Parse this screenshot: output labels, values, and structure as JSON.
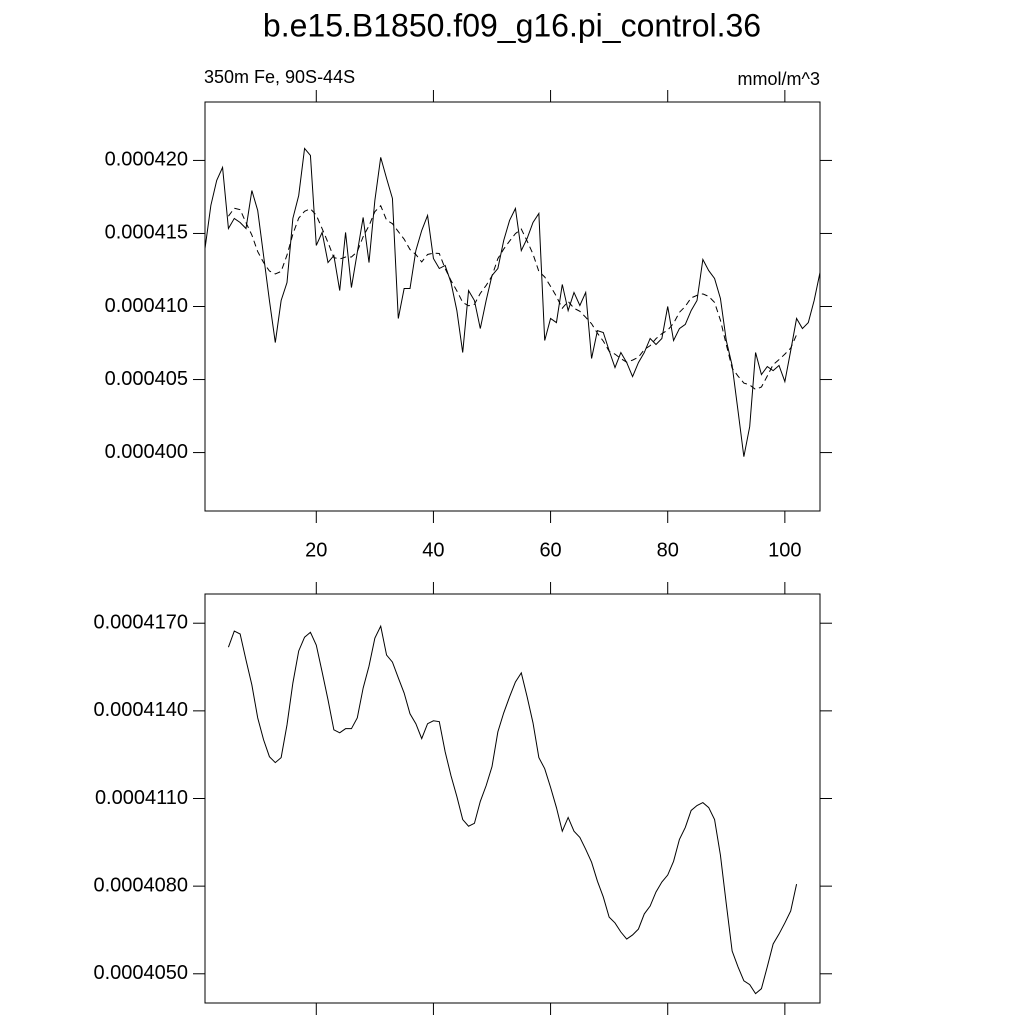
{
  "chart_data": [
    {
      "type": "line",
      "title": "b.e15.B1850.f09_g16.pi_control.36",
      "subtitle_left": "350m Fe, 90S-44S",
      "subtitle_right": "mmol/m^3",
      "x": [
        1,
        2,
        3,
        4,
        5,
        6,
        7,
        8,
        9,
        10,
        11,
        12,
        13,
        14,
        15,
        16,
        17,
        18,
        19,
        20,
        21,
        22,
        23,
        24,
        25,
        26,
        27,
        28,
        29,
        30,
        31,
        32,
        33,
        34,
        35,
        36,
        37,
        38,
        39,
        40,
        41,
        42,
        43,
        44,
        45,
        46,
        47,
        48,
        49,
        50,
        51,
        52,
        53,
        54,
        55,
        56,
        57,
        58,
        59,
        60,
        61,
        62,
        63,
        64,
        65,
        66,
        67,
        68,
        69,
        70,
        71,
        72,
        73,
        74,
        75,
        76,
        77,
        78,
        79,
        80,
        81,
        82,
        83,
        84,
        85,
        86,
        87,
        88,
        89,
        90,
        91,
        92,
        93,
        94,
        95,
        96,
        97,
        98,
        99,
        100,
        101,
        102,
        103,
        104,
        105,
        106
      ],
      "series": [
        {
          "color": "#000000",
          "line_style": "solid",
          "values": [
            0.00041397,
            0.00041692,
            0.00041863,
            0.00041952,
            0.00041534,
            0.00041603,
            0.00041575,
            0.00041534,
            0.00041794,
            0.00041657,
            0.00041349,
            0.00041041,
            0.00040753,
            0.00041041,
            0.00041164,
            0.00041603,
            0.0004176,
            0.00042082,
            0.00042034,
            0.00041418,
            0.00041507,
            0.00041301,
            0.00041349,
            0.00041109,
            0.00041507,
            0.0004113,
            0.0004137,
            0.0004161,
            0.00041301,
            0.00041726,
            0.00042021,
            0.00041877,
            0.0004174,
            0.00040918,
            0.00041123,
            0.00041123,
            0.00041383,
            0.0004152,
            0.00041623,
            0.00041329,
            0.0004126,
            0.00041281,
            0.00041164,
            0.00040972,
            0.00040685,
            0.00041109,
            0.00041041,
            0.00040849,
            0.00041041,
            0.00041212,
            0.0004126,
            0.00041452,
            0.00041589,
            0.00041671,
            0.00041383,
            0.00041466,
            0.00041575,
            0.00041637,
            0.00040767,
            0.00040918,
            0.0004089,
            0.00041151,
            0.00040972,
            0.00041096,
            0.00041007,
            0.00041096,
            0.00040644,
            0.00040835,
            0.00040822,
            0.00040698,
            0.00040582,
            0.00040685,
            0.00040616,
            0.0004052,
            0.00040616,
            0.00040685,
            0.00040781,
            0.0004074,
            0.00040781,
            0.00041,
            0.00040767,
            0.00040849,
            0.00040877,
            0.00040972,
            0.00041041,
            0.00041322,
            0.00041246,
            0.00041192,
            0.00041055,
            0.00040767,
            0.00040596,
            0.00040287,
            0.00039972,
            0.00040178,
            0.00040685,
            0.00040534,
            0.00040589,
            0.00040561,
            0.00040596,
            0.00040486,
            0.00040698,
            0.00040918,
            0.00040849,
            0.0004089,
            0.00041041,
            0.00041233
          ]
        },
        {
          "color": "#000000",
          "line_style": "dashed",
          "values": [
            null,
            null,
            null,
            null,
            0.00041618,
            0.00041673,
            0.00041663,
            0.00041574,
            0.00041489,
            0.00041376,
            0.00041301,
            0.00041243,
            0.00041223,
            0.0004124,
            0.00041352,
            0.00041495,
            0.00041605,
            0.00041652,
            0.00041669,
            0.00041625,
            0.00041533,
            0.00041438,
            0.00041335,
            0.00041325,
            0.00041339,
            0.00041339,
            0.00041376,
            0.00041478,
            0.00041553,
            0.00041649,
            0.0004169,
            0.00041591,
            0.00041567,
            0.00041513,
            0.00041461,
            0.0004139,
            0.00041356,
            0.00041305,
            0.00041356,
            0.00041366,
            0.00041363,
            0.0004126,
            0.00041178,
            0.00041107,
            0.00041028,
            0.00041005,
            0.00041015,
            0.0004109,
            0.00041144,
            0.00041209,
            0.00041328,
            0.00041393,
            0.00041448,
            0.00041499,
            0.0004153,
            0.00041448,
            0.00041359,
            0.0004124,
            0.00041202,
            0.00041138,
            0.00041069,
            0.00040988,
            0.00041035,
            0.00040988,
            0.00040967,
            0.00040926,
            0.00040882,
            0.00040817,
            0.00040763,
            0.00040694,
            0.00040674,
            0.00040643,
            0.00040619,
            0.00040633,
            0.00040653,
            0.00040705,
            0.00040732,
            0.0004078,
            0.00040814,
            0.00040838,
            0.00040885,
            0.0004096,
            0.00041001,
            0.00041059,
            0.00041076,
            0.00041086,
            0.00041069,
            0.00041028,
            0.00040906,
            0.00040739,
            0.00040578,
            0.00040524,
            0.00040476,
            0.00040463,
            0.00040432,
            0.00040449,
            0.00040524,
            0.00040602,
            0.00040636,
            0.00040674,
            0.00040715,
            0.00040807,
            null,
            null,
            null,
            null
          ]
        }
      ],
      "xlim": [
        1,
        106
      ],
      "xticks": [
        20,
        40,
        60,
        80,
        100
      ],
      "xtick_labels": true,
      "ylim": [
        0.000396,
        0.000424
      ],
      "yticks": [
        {
          "value": 0.0004,
          "label": "0.000400"
        },
        {
          "value": 0.000405,
          "label": "0.000405"
        },
        {
          "value": 0.00041,
          "label": "0.000410"
        },
        {
          "value": 0.000415,
          "label": "0.000415"
        },
        {
          "value": 0.00042,
          "label": "0.000420"
        }
      ]
    },
    {
      "type": "line",
      "x": [
        5,
        6,
        7,
        8,
        9,
        10,
        11,
        12,
        13,
        14,
        15,
        16,
        17,
        18,
        19,
        20,
        21,
        22,
        23,
        24,
        25,
        26,
        27,
        28,
        29,
        30,
        31,
        32,
        33,
        34,
        35,
        36,
        37,
        38,
        39,
        40,
        41,
        42,
        43,
        44,
        45,
        46,
        47,
        48,
        49,
        50,
        51,
        52,
        53,
        54,
        55,
        56,
        57,
        58,
        59,
        60,
        61,
        62,
        63,
        64,
        65,
        66,
        67,
        68,
        69,
        70,
        71,
        72,
        73,
        74,
        75,
        76,
        77,
        78,
        79,
        80,
        81,
        82,
        83,
        84,
        85,
        86,
        87,
        88,
        89,
        90,
        91,
        92,
        93,
        94,
        95,
        96,
        97,
        98,
        99,
        100,
        101,
        102
      ],
      "series": [
        {
          "color": "#000000",
          "line_style": "solid",
          "values": [
            0.00041618,
            0.00041673,
            0.00041663,
            0.00041574,
            0.00041489,
            0.00041376,
            0.00041301,
            0.00041243,
            0.00041223,
            0.0004124,
            0.00041352,
            0.00041495,
            0.00041605,
            0.00041652,
            0.00041669,
            0.00041625,
            0.00041533,
            0.00041438,
            0.00041335,
            0.00041325,
            0.00041339,
            0.00041339,
            0.00041376,
            0.00041478,
            0.00041553,
            0.00041649,
            0.0004169,
            0.00041591,
            0.00041567,
            0.00041513,
            0.00041461,
            0.0004139,
            0.00041356,
            0.00041305,
            0.00041356,
            0.00041366,
            0.00041363,
            0.0004126,
            0.00041178,
            0.00041107,
            0.00041028,
            0.00041005,
            0.00041015,
            0.0004109,
            0.00041144,
            0.00041209,
            0.00041328,
            0.00041393,
            0.00041448,
            0.00041499,
            0.0004153,
            0.00041448,
            0.00041359,
            0.0004124,
            0.00041202,
            0.00041138,
            0.00041069,
            0.00040988,
            0.00041035,
            0.00040988,
            0.00040967,
            0.00040926,
            0.00040882,
            0.00040817,
            0.00040763,
            0.00040694,
            0.00040674,
            0.00040643,
            0.00040619,
            0.00040633,
            0.00040653,
            0.00040705,
            0.00040732,
            0.0004078,
            0.00040814,
            0.00040838,
            0.00040885,
            0.0004096,
            0.00041001,
            0.00041059,
            0.00041076,
            0.00041086,
            0.00041069,
            0.00041028,
            0.00040906,
            0.00040739,
            0.00040578,
            0.00040524,
            0.00040476,
            0.00040463,
            0.00040432,
            0.00040449,
            0.00040524,
            0.00040602,
            0.00040636,
            0.00040674,
            0.00040715,
            0.00040807
          ]
        }
      ],
      "xlim": [
        1,
        106
      ],
      "xticks": [
        20,
        40,
        60,
        80,
        100
      ],
      "xtick_labels": false,
      "ylim": [
        0.000404,
        0.000418
      ],
      "yticks": [
        {
          "value": 0.000405,
          "label": "0.0004050"
        },
        {
          "value": 0.000408,
          "label": "0.0004080"
        },
        {
          "value": 0.000411,
          "label": "0.0004110"
        },
        {
          "value": 0.000414,
          "label": "0.0004140"
        },
        {
          "value": 0.000417,
          "label": "0.0004170"
        }
      ]
    }
  ]
}
